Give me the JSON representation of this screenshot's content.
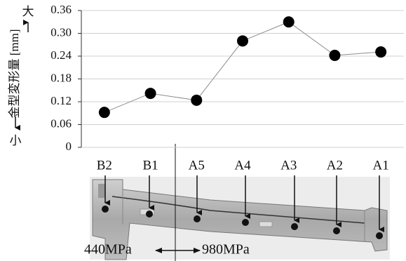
{
  "chart_data": {
    "type": "line",
    "y_label": "金型変形量 [mm]",
    "y_high_label": "大",
    "y_low_label": "小",
    "categories": [
      "B2",
      "B1",
      "A5",
      "A4",
      "A3",
      "A2",
      "A1"
    ],
    "values": [
      0.092,
      0.142,
      0.124,
      0.28,
      0.33,
      0.242,
      0.251
    ],
    "color": "#000000",
    "line_color": "#8c8c8c",
    "ylim": [
      0,
      0.36
    ],
    "yticks": [
      0,
      0.06,
      0.12,
      0.18,
      0.24,
      {
        "value": 0.3,
        "label": "0.30"
      },
      0.36
    ],
    "grid": true,
    "annotations": [
      "440MPa",
      "980MPa"
    ]
  }
}
